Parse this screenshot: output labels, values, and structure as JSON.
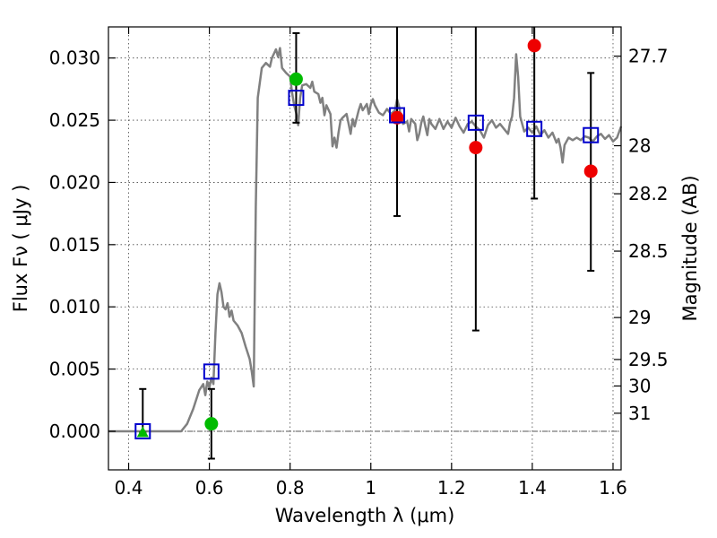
{
  "chart_data": {
    "type": "scatter",
    "xlabel": "Wavelength  λ (μm)",
    "ylabel": "Flux  Fν  ( μJy )",
    "ylabel_right": "Magnitude (AB)",
    "xlim": [
      0.35,
      1.62
    ],
    "ylim": [
      -0.0031,
      0.0325
    ],
    "grid": true,
    "x_ticks": [
      0.4,
      0.6,
      0.8,
      1.0,
      1.2,
      1.4,
      1.6
    ],
    "x_tick_labels": [
      "0.4",
      "0.6",
      "0.8",
      "1",
      "1.2",
      "1.4",
      "1.6"
    ],
    "y_ticks": [
      0.0,
      0.005,
      0.01,
      0.015,
      0.02,
      0.025,
      0.03
    ],
    "y_tick_labels": [
      "0.000",
      "0.005",
      "0.010",
      "0.015",
      "0.020",
      "0.025",
      "0.030"
    ],
    "right_ticks": [
      {
        "label": "27.7",
        "flux": 0.03015
      },
      {
        "label": "28",
        "flux": 0.02295
      },
      {
        "label": "28.2",
        "flux": 0.01909
      },
      {
        "label": "28.5",
        "flux": 0.01448
      },
      {
        "label": "29",
        "flux": 0.00914
      },
      {
        "label": "29.5",
        "flux": 0.00577
      },
      {
        "label": "30",
        "flux": 0.00364
      },
      {
        "label": "31",
        "flux": 0.00145
      }
    ],
    "colors": {
      "model": "#808080",
      "model_photometry": "#0000cc",
      "detections": "#00bb00",
      "upper_points": "#ee0000",
      "error_bars": "#000000",
      "zero_line": "#555555",
      "grid": "#444444"
    },
    "series": [
      {
        "kind": "line",
        "points": [
          [
            0.35,
            0.0
          ],
          [
            0.45,
            0.0
          ],
          [
            0.51,
            0.0
          ],
          [
            0.53,
            0.0
          ],
          [
            0.545,
            0.0006
          ],
          [
            0.56,
            0.0018
          ],
          [
            0.575,
            0.0033
          ],
          [
            0.585,
            0.0038
          ],
          [
            0.59,
            0.0029
          ],
          [
            0.595,
            0.004
          ],
          [
            0.6,
            0.0035
          ],
          [
            0.605,
            0.0043
          ],
          [
            0.61,
            0.0038
          ],
          [
            0.615,
            0.0079
          ],
          [
            0.62,
            0.011
          ],
          [
            0.625,
            0.0119
          ],
          [
            0.63,
            0.0112
          ],
          [
            0.635,
            0.01
          ],
          [
            0.64,
            0.0098
          ],
          [
            0.645,
            0.0103
          ],
          [
            0.65,
            0.0092
          ],
          [
            0.655,
            0.0097
          ],
          [
            0.66,
            0.0089
          ],
          [
            0.67,
            0.0085
          ],
          [
            0.68,
            0.0079
          ],
          [
            0.69,
            0.0068
          ],
          [
            0.7,
            0.0058
          ],
          [
            0.705,
            0.0048
          ],
          [
            0.71,
            0.0036
          ],
          [
            0.715,
            0.018
          ],
          [
            0.72,
            0.0268
          ],
          [
            0.73,
            0.0292
          ],
          [
            0.74,
            0.0296
          ],
          [
            0.75,
            0.0293
          ],
          [
            0.755,
            0.03
          ],
          [
            0.765,
            0.0307
          ],
          [
            0.77,
            0.0301
          ],
          [
            0.775,
            0.0308
          ],
          [
            0.78,
            0.0292
          ],
          [
            0.79,
            0.0288
          ],
          [
            0.8,
            0.0285
          ],
          [
            0.805,
            0.0272
          ],
          [
            0.81,
            0.0262
          ],
          [
            0.815,
            0.0256
          ],
          [
            0.82,
            0.0246
          ],
          [
            0.825,
            0.0268
          ],
          [
            0.83,
            0.0278
          ],
          [
            0.84,
            0.0279
          ],
          [
            0.85,
            0.0276
          ],
          [
            0.855,
            0.0281
          ],
          [
            0.86,
            0.0273
          ],
          [
            0.87,
            0.0271
          ],
          [
            0.875,
            0.0264
          ],
          [
            0.88,
            0.0268
          ],
          [
            0.885,
            0.0254
          ],
          [
            0.89,
            0.0262
          ],
          [
            0.9,
            0.0255
          ],
          [
            0.905,
            0.0229
          ],
          [
            0.91,
            0.0236
          ],
          [
            0.915,
            0.0228
          ],
          [
            0.92,
            0.024
          ],
          [
            0.925,
            0.025
          ],
          [
            0.93,
            0.0252
          ],
          [
            0.94,
            0.0255
          ],
          [
            0.945,
            0.0247
          ],
          [
            0.95,
            0.0239
          ],
          [
            0.955,
            0.0251
          ],
          [
            0.96,
            0.0245
          ],
          [
            0.97,
            0.0258
          ],
          [
            0.975,
            0.0263
          ],
          [
            0.98,
            0.0258
          ],
          [
            0.99,
            0.0263
          ],
          [
            0.995,
            0.0255
          ],
          [
            1.0,
            0.0263
          ],
          [
            1.005,
            0.0267
          ],
          [
            1.01,
            0.0262
          ],
          [
            1.02,
            0.0256
          ],
          [
            1.03,
            0.0254
          ],
          [
            1.04,
            0.0259
          ],
          [
            1.05,
            0.0255
          ],
          [
            1.06,
            0.0258
          ],
          [
            1.065,
            0.0267
          ],
          [
            1.07,
            0.0261
          ],
          [
            1.075,
            0.0252
          ],
          [
            1.08,
            0.0247
          ],
          [
            1.09,
            0.0249
          ],
          [
            1.095,
            0.0241
          ],
          [
            1.1,
            0.0251
          ],
          [
            1.11,
            0.0247
          ],
          [
            1.115,
            0.0234
          ],
          [
            1.12,
            0.0239
          ],
          [
            1.125,
            0.0248
          ],
          [
            1.13,
            0.0253
          ],
          [
            1.135,
            0.0245
          ],
          [
            1.14,
            0.0238
          ],
          [
            1.145,
            0.0251
          ],
          [
            1.15,
            0.0247
          ],
          [
            1.16,
            0.0243
          ],
          [
            1.17,
            0.0251
          ],
          [
            1.18,
            0.0243
          ],
          [
            1.19,
            0.0249
          ],
          [
            1.2,
            0.0244
          ],
          [
            1.21,
            0.0252
          ],
          [
            1.22,
            0.0245
          ],
          [
            1.23,
            0.024
          ],
          [
            1.24,
            0.0247
          ],
          [
            1.25,
            0.0249
          ],
          [
            1.26,
            0.0245
          ],
          [
            1.27,
            0.0242
          ],
          [
            1.28,
            0.0236
          ],
          [
            1.29,
            0.0246
          ],
          [
            1.3,
            0.025
          ],
          [
            1.31,
            0.0244
          ],
          [
            1.32,
            0.0247
          ],
          [
            1.33,
            0.0243
          ],
          [
            1.34,
            0.0239
          ],
          [
            1.345,
            0.0248
          ],
          [
            1.35,
            0.0253
          ],
          [
            1.355,
            0.0268
          ],
          [
            1.36,
            0.0303
          ],
          [
            1.365,
            0.0285
          ],
          [
            1.37,
            0.0253
          ],
          [
            1.38,
            0.0241
          ],
          [
            1.39,
            0.0244
          ],
          [
            1.4,
            0.024
          ],
          [
            1.41,
            0.0245
          ],
          [
            1.42,
            0.0238
          ],
          [
            1.43,
            0.0242
          ],
          [
            1.44,
            0.0236
          ],
          [
            1.45,
            0.024
          ],
          [
            1.46,
            0.0232
          ],
          [
            1.465,
            0.0235
          ],
          [
            1.47,
            0.0228
          ],
          [
            1.475,
            0.0216
          ],
          [
            1.48,
            0.023
          ],
          [
            1.49,
            0.0236
          ],
          [
            1.5,
            0.0234
          ],
          [
            1.51,
            0.0236
          ],
          [
            1.52,
            0.0234
          ],
          [
            1.53,
            0.0237
          ],
          [
            1.54,
            0.0236
          ],
          [
            1.55,
            0.0233
          ],
          [
            1.56,
            0.0237
          ],
          [
            1.57,
            0.0239
          ],
          [
            1.58,
            0.0235
          ],
          [
            1.59,
            0.0238
          ],
          [
            1.6,
            0.0233
          ],
          [
            1.61,
            0.0236
          ],
          [
            1.62,
            0.0245
          ]
        ]
      },
      {
        "kind": "open-square",
        "points": [
          [
            0.435,
            0.0
          ],
          [
            0.605,
            0.0048
          ],
          [
            0.815,
            0.0268
          ],
          [
            1.065,
            0.0254
          ],
          [
            1.26,
            0.0248
          ],
          [
            1.405,
            0.0243
          ],
          [
            1.545,
            0.0238
          ]
        ]
      },
      {
        "kind": "green-circle",
        "points": [
          [
            0.605,
            0.0006
          ],
          [
            0.815,
            0.0283
          ]
        ]
      },
      {
        "kind": "green-triangle",
        "points": [
          [
            0.435,
            -0.0001
          ]
        ]
      },
      {
        "kind": "red-circle",
        "points": [
          [
            1.065,
            0.0252
          ],
          [
            1.26,
            0.0228
          ],
          [
            1.405,
            0.031
          ],
          [
            1.545,
            0.0209
          ]
        ]
      },
      {
        "kind": "error-bar",
        "points": [
          [
            0.435,
            -0.0001,
            0.0034
          ],
          [
            0.605,
            -0.0022,
            0.0034
          ],
          [
            0.815,
            0.0248,
            0.032
          ],
          [
            1.065,
            0.0173,
            0.0326
          ],
          [
            1.26,
            0.0081,
            0.0326
          ],
          [
            1.405,
            0.0187,
            0.0326
          ],
          [
            1.545,
            0.0129,
            0.0288
          ]
        ]
      }
    ]
  }
}
